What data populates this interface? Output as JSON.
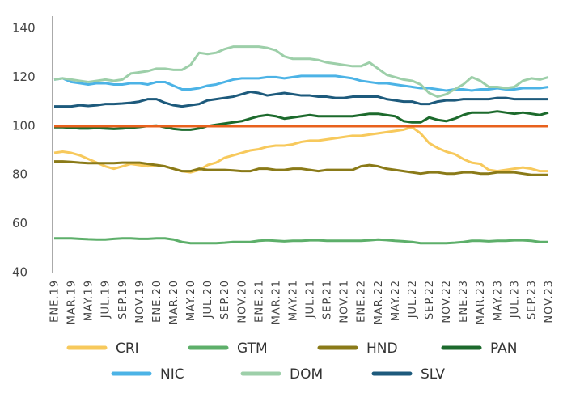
{
  "chart_data": {
    "type": "line",
    "categories": [
      "ENE.19",
      null,
      "MAR.19",
      null,
      "MAY.19",
      null,
      "JUL.19",
      null,
      "SEP.19",
      null,
      "NOV.19",
      null,
      "ENE.20",
      null,
      "MAR.20",
      null,
      "MAY.20",
      null,
      "JUL.20",
      null,
      "SEP.20",
      null,
      "NOV.20",
      null,
      "ENE.21",
      null,
      "MAR.21",
      null,
      "MAY.21",
      null,
      "JUL.21",
      null,
      "SEP.21",
      null,
      "NOV.21",
      null,
      "ENE.22",
      null,
      "MAR.22",
      null,
      "MAY.22",
      null,
      "JUL.22",
      null,
      "SEP.22",
      null,
      "NOV.22",
      null,
      "ENE.23",
      null,
      "MAR.23",
      null,
      "MAY.23",
      null,
      "JUL.23",
      null,
      "SEP.23",
      null,
      "NOV.23"
    ],
    "series": [
      {
        "name": "CRI",
        "color": "#f7c95c",
        "values": [
          89,
          89.5,
          89,
          88,
          86.5,
          85,
          83.5,
          82.5,
          83.5,
          84.5,
          84,
          83.5,
          84,
          83.5,
          82.5,
          81.5,
          81,
          82,
          84,
          85,
          87,
          88,
          89,
          90,
          90.5,
          91.5,
          92,
          92,
          92.5,
          93.5,
          94,
          94,
          94.5,
          95,
          95.5,
          96,
          96,
          96.5,
          97,
          97.5,
          98,
          98.5,
          99.5,
          97,
          93,
          91,
          89.5,
          88.5,
          86.5,
          85,
          84.5,
          82,
          81.5,
          82,
          82.5,
          83,
          82.5,
          81.5,
          81.5
        ]
      },
      {
        "name": "GTM",
        "color": "#5daf6a",
        "values": [
          54,
          54,
          54,
          53.8,
          53.6,
          53.5,
          53.5,
          53.8,
          54,
          54,
          53.8,
          53.8,
          54,
          54,
          53.5,
          52.5,
          52,
          52,
          52,
          52,
          52.2,
          52.5,
          52.5,
          52.5,
          53,
          53.2,
          53,
          52.8,
          53,
          53,
          53.2,
          53.2,
          53,
          53,
          53,
          53,
          53,
          53.2,
          53.5,
          53.3,
          53,
          52.8,
          52.5,
          52,
          52,
          52,
          52,
          52.2,
          52.5,
          53,
          53,
          52.8,
          53,
          53,
          53.2,
          53.2,
          53,
          52.5,
          52.5
        ]
      },
      {
        "name": "HND",
        "color": "#8a7a18",
        "values": [
          85.5,
          85.5,
          85.3,
          85,
          84.8,
          84.8,
          84.8,
          84.8,
          85,
          85,
          85,
          84.5,
          84,
          83.5,
          82.5,
          81.5,
          81.5,
          82.5,
          82,
          82,
          82,
          81.8,
          81.5,
          81.5,
          82.5,
          82.5,
          82,
          82,
          82.5,
          82.5,
          82,
          81.5,
          82,
          82,
          82,
          82,
          83.5,
          84,
          83.5,
          82.5,
          82,
          81.5,
          81,
          80.5,
          81,
          81,
          80.5,
          80.5,
          81,
          81,
          80.5,
          80.5,
          81,
          81,
          81,
          80.5,
          80,
          80,
          80
        ]
      },
      {
        "name": "PAN",
        "color": "#1c6a2c",
        "values": [
          99.5,
          99.5,
          99.3,
          99,
          99,
          99.2,
          99,
          98.8,
          99,
          99.3,
          99.6,
          100,
          100.2,
          99.5,
          98.8,
          98.5,
          98.5,
          99,
          100,
          100.5,
          101,
          101.5,
          102,
          103,
          104,
          104.5,
          104,
          103,
          103.5,
          104,
          104.5,
          104,
          104,
          104,
          104,
          104,
          104.5,
          105,
          105,
          104.5,
          104,
          102,
          101.5,
          101.5,
          103.5,
          102.5,
          102,
          103,
          104.5,
          105.5,
          105.5,
          105.5,
          106,
          105.5,
          105,
          105.5,
          105,
          104.5,
          105.5
        ]
      },
      {
        "name": "NIC",
        "color": "#4cb3e6",
        "values": [
          119,
          119.5,
          118,
          117.5,
          117,
          117.5,
          117.5,
          117,
          117,
          117.5,
          117.5,
          117,
          118,
          118,
          116.5,
          115,
          115,
          115.5,
          116.5,
          117,
          118,
          119,
          119.5,
          119.5,
          119.5,
          120,
          120,
          119.5,
          120,
          120.5,
          120.5,
          120.5,
          120.5,
          120.5,
          120,
          119.5,
          118.5,
          118,
          117.5,
          117.5,
          117,
          116.5,
          116,
          115.5,
          115.5,
          115,
          114.5,
          115,
          115,
          114.5,
          115,
          115,
          115.5,
          115,
          115,
          115.5,
          115.5,
          115.5,
          116
        ]
      },
      {
        "name": "DOM",
        "color": "#9dcfa9",
        "values": [
          119,
          119.5,
          119,
          118.5,
          118,
          118.5,
          119,
          118.5,
          119,
          121.5,
          122,
          122.5,
          123.5,
          123.5,
          123,
          123,
          125,
          130,
          129.5,
          130,
          131.5,
          132.5,
          132.5,
          132.5,
          132.5,
          132,
          131,
          128.5,
          127.5,
          127.5,
          127.5,
          127,
          126,
          125.5,
          125,
          124.5,
          124.5,
          126,
          123.5,
          121,
          120,
          119,
          118.5,
          117,
          113.5,
          112,
          113,
          115,
          117,
          120,
          118.5,
          116,
          116,
          115.5,
          116,
          118.5,
          119.5,
          119,
          120
        ]
      },
      {
        "name": "SLV",
        "color": "#1d5a7c",
        "values": [
          108,
          108,
          108,
          108.5,
          108.2,
          108.5,
          109,
          109,
          109.2,
          109.5,
          110,
          111,
          111,
          109.5,
          108.5,
          108,
          108.5,
          109,
          110.5,
          111,
          111.5,
          112,
          113,
          114,
          113.5,
          112.5,
          113,
          113.5,
          113,
          112.5,
          112.5,
          112,
          112,
          111.5,
          111.5,
          112,
          112,
          112,
          112,
          111,
          110.5,
          110,
          110,
          109,
          109,
          110,
          110.5,
          110.5,
          111,
          111,
          111,
          111,
          111.5,
          111.5,
          111,
          111,
          111,
          111,
          111
        ]
      }
    ],
    "reference_line": {
      "value": 100,
      "color": "#e8611d"
    },
    "ylim": [
      40,
      140
    ],
    "yticks": [
      40,
      60,
      80,
      100,
      120,
      140
    ]
  }
}
